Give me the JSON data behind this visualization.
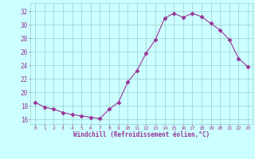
{
  "x": [
    0,
    1,
    2,
    3,
    4,
    5,
    6,
    7,
    8,
    9,
    10,
    11,
    12,
    13,
    14,
    15,
    16,
    17,
    18,
    19,
    20,
    21,
    22,
    23
  ],
  "y": [
    18.5,
    17.8,
    17.5,
    17.0,
    16.7,
    16.5,
    16.3,
    16.1,
    17.5,
    18.5,
    21.5,
    23.2,
    25.8,
    27.8,
    31.0,
    31.7,
    31.1,
    31.7,
    31.2,
    30.2,
    29.2,
    27.8,
    25.0,
    23.8
  ],
  "line_color": "#993399",
  "marker": "D",
  "marker_size": 2.5,
  "bg_color": "#ccffff",
  "grid_color": "#99cccc",
  "tick_color": "#993399",
  "xlabel": "Windchill (Refroidissement éolien,°C)",
  "xlabel_color": "#993399",
  "ylabel_ticks": [
    16,
    18,
    20,
    22,
    24,
    26,
    28,
    30,
    32
  ],
  "xlim": [
    -0.5,
    23.5
  ],
  "ylim": [
    15.3,
    33.2
  ]
}
